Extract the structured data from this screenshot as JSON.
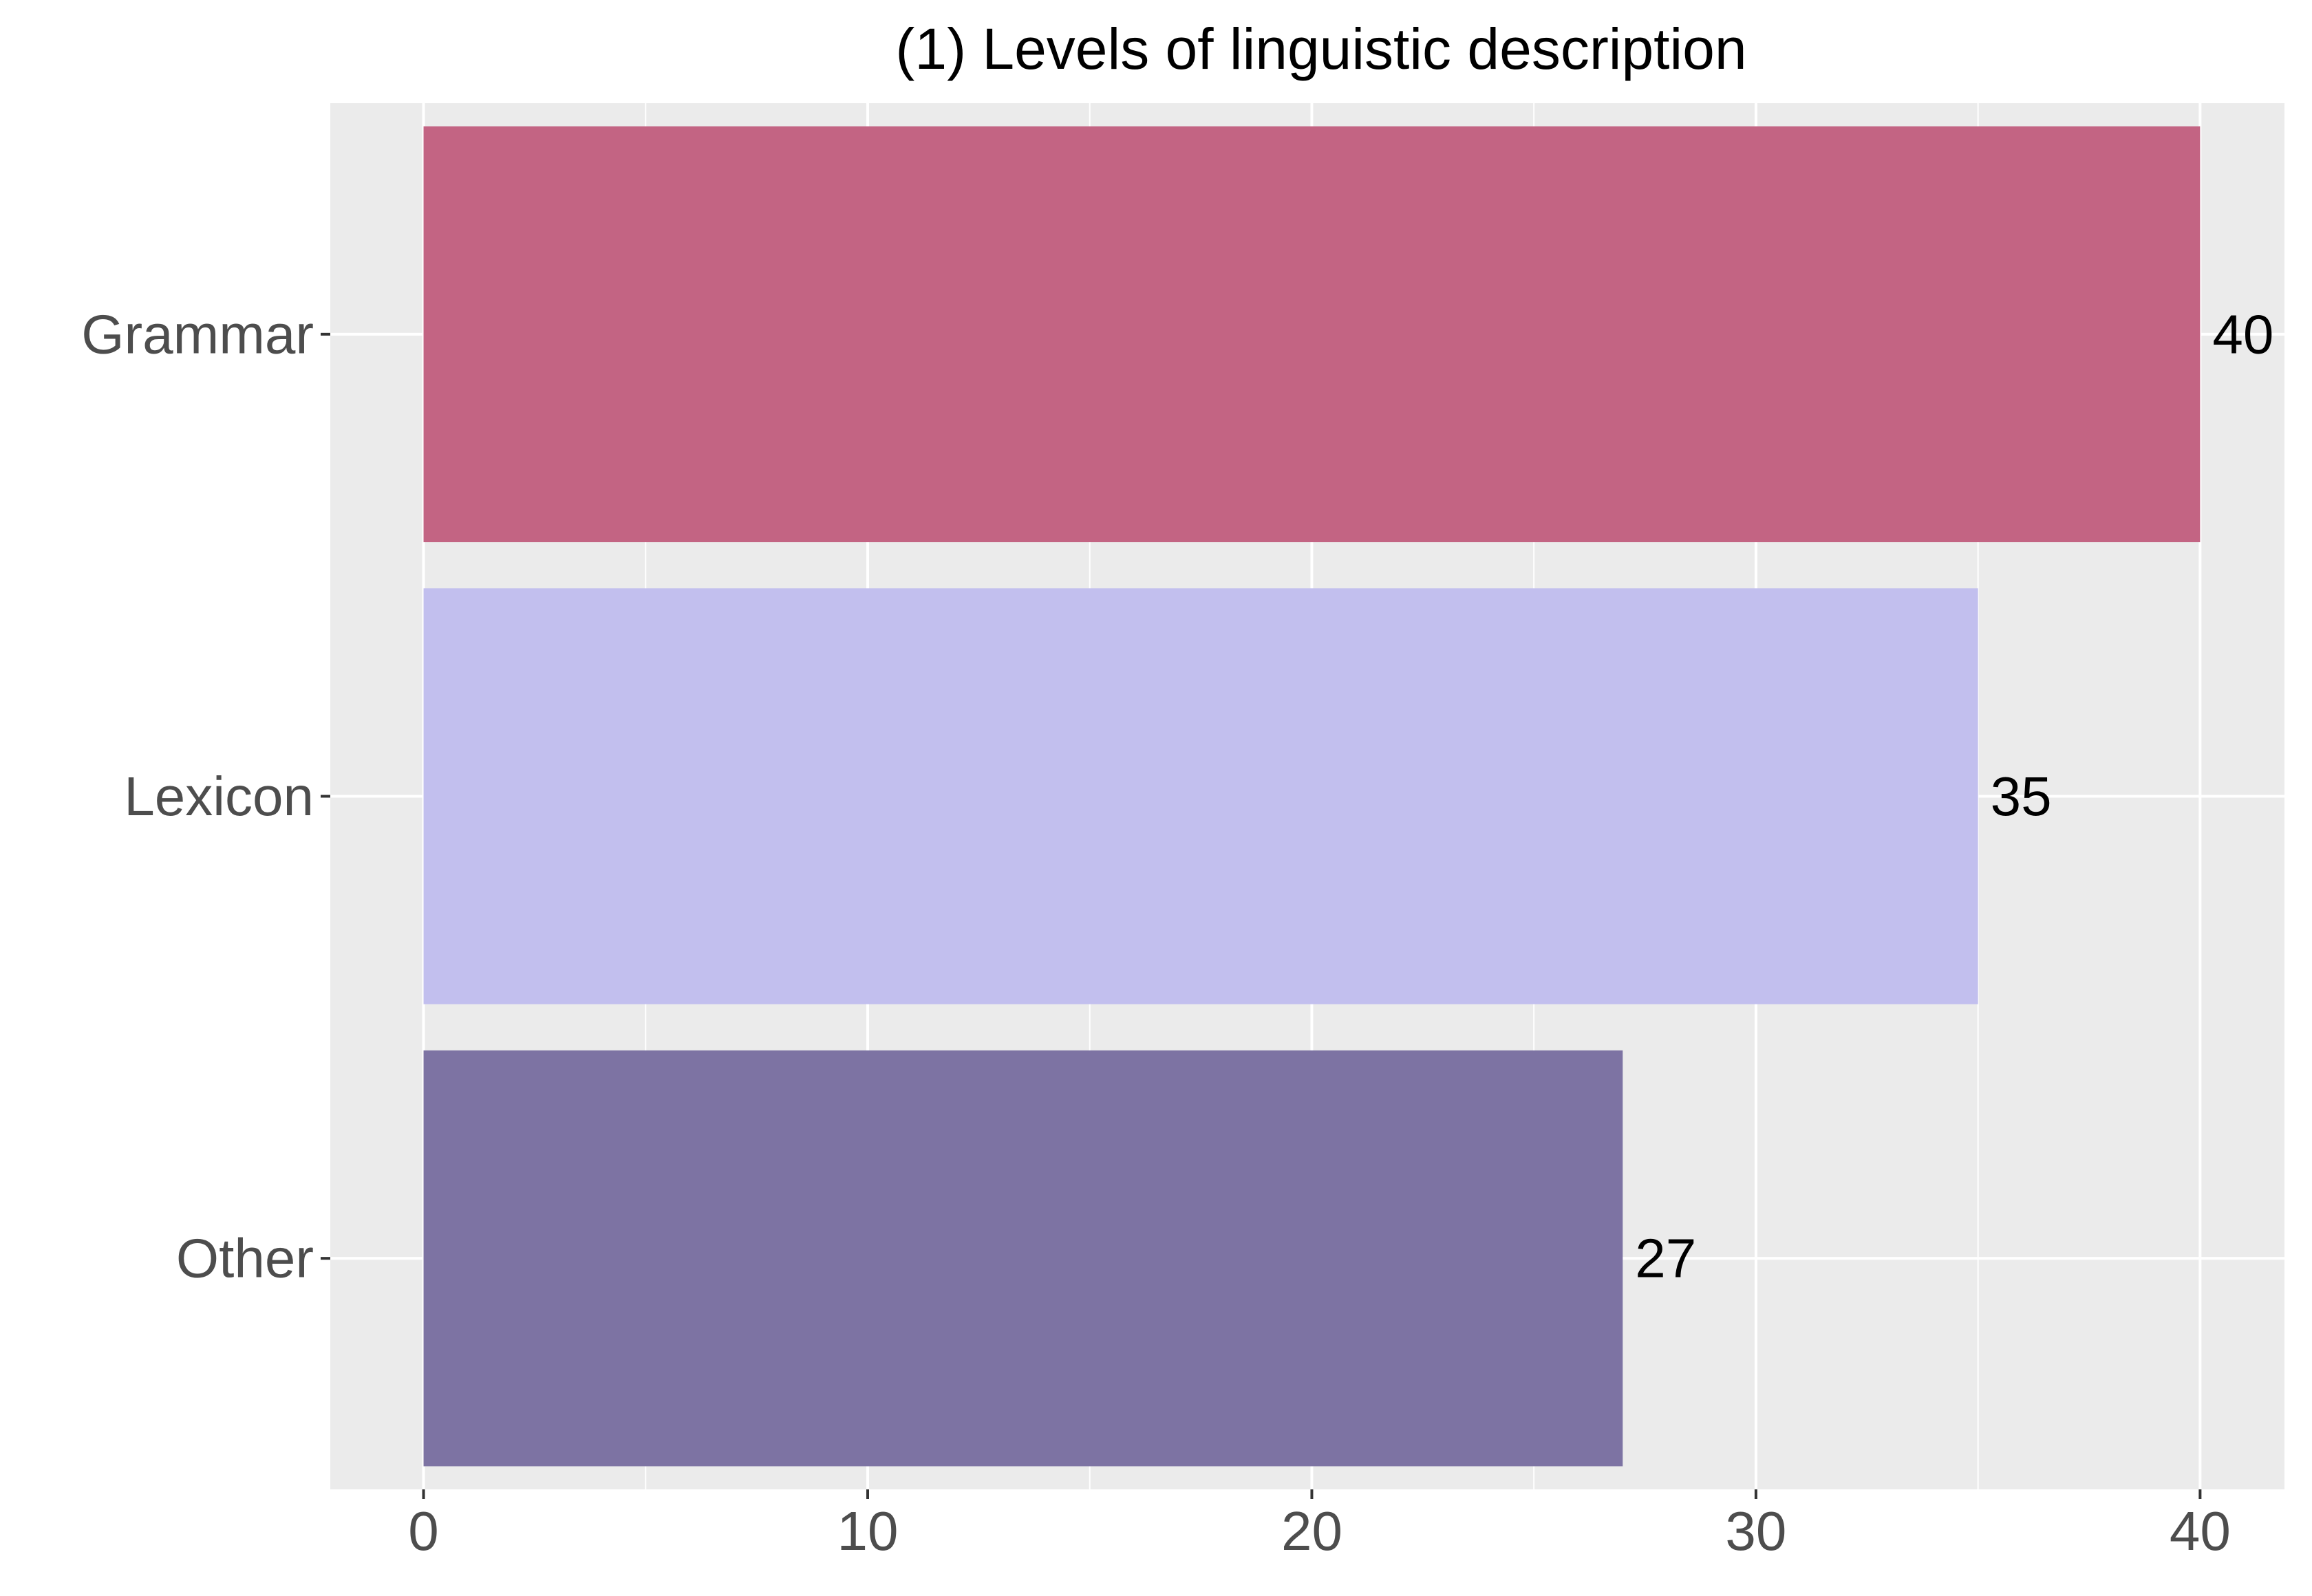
{
  "chart_data": {
    "type": "bar",
    "orientation": "horizontal",
    "title": "(1) Levels of linguistic description",
    "xlabel": "",
    "ylabel": "",
    "categories": [
      "Grammar",
      "Lexicon",
      "Other"
    ],
    "values": [
      40,
      35,
      27
    ],
    "data_labels": [
      "40",
      "35",
      "27"
    ],
    "colors": [
      "#c36483",
      "#c2bfee",
      "#7d73a3"
    ],
    "x_ticks": [
      0,
      10,
      20,
      30,
      40
    ],
    "x_tick_labels": [
      "0",
      "10",
      "20",
      "30",
      "40"
    ],
    "xlim": [
      -2.1,
      41.9
    ],
    "grid": true,
    "legend": "none",
    "panel_background": "#ebebeb",
    "grid_color": "#ffffff"
  }
}
